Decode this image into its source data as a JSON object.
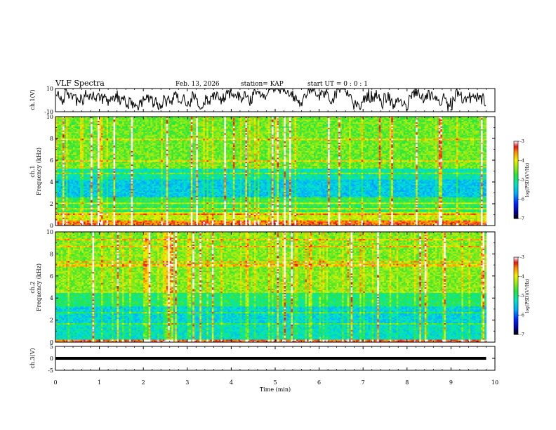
{
  "header": {
    "title": "VLF Spectra",
    "date": "Feb. 13, 2026",
    "station": "station= KAP",
    "start": "start  UT =   0 : 0  : 1"
  },
  "chart_data": {
    "type": "heatmap",
    "x_axis": {
      "label": "Time (min)",
      "range": [
        0,
        10
      ],
      "ticks": [
        0,
        1,
        2,
        3,
        4,
        5,
        6,
        7,
        8,
        9,
        10
      ],
      "tick_labels": [
        "0",
        "1",
        "2",
        "3",
        "4",
        "5",
        "6",
        "7",
        "8",
        "9",
        "10"
      ]
    },
    "panels": [
      {
        "id": "ch1_waveform",
        "kind": "line",
        "ylabel": "ch.1(V)",
        "ylim": [
          -10,
          10
        ],
        "y_ticks": [
          10,
          -10
        ],
        "y_tick_labels": [
          "10",
          "-10"
        ],
        "data_end_min": 9.8
      },
      {
        "id": "ch1_spectrogram",
        "kind": "heatmap",
        "ylabel_line1": "ch.1",
        "ylabel_line2": "Frequency (kHz)",
        "ylim": [
          0,
          10
        ],
        "y_ticks": [
          0,
          2,
          4,
          6,
          8,
          10
        ],
        "y_tick_labels": [
          "0",
          "2",
          "4",
          "6",
          "8",
          "10"
        ],
        "data_end_min": 9.8,
        "colorbar": {
          "label": "log(PSD)(V²/Hz)",
          "range": [
            -7,
            -3
          ],
          "ticks": [
            -3,
            -4,
            -5,
            -6,
            -7
          ],
          "tick_labels": [
            "-3",
            "-4",
            "-5",
            "-6",
            "-7"
          ]
        }
      },
      {
        "id": "ch2_spectrogram",
        "kind": "heatmap",
        "ylabel_line1": "ch.2",
        "ylabel_line2": "Frequency (kHz)",
        "ylim": [
          0,
          10
        ],
        "y_ticks": [
          0,
          2,
          4,
          6,
          8,
          10
        ],
        "y_tick_labels": [
          "0",
          "2",
          "4",
          "6",
          "8",
          "10"
        ],
        "data_end_min": 9.8,
        "colorbar": {
          "label": "log(PSD)(V²/Hz)",
          "range": [
            -7,
            -3
          ],
          "ticks": [
            -3,
            -4,
            -5,
            -6,
            -7
          ],
          "tick_labels": [
            "-3",
            "-4",
            "-5",
            "-6",
            "-7"
          ]
        }
      },
      {
        "id": "ch3_waveform",
        "kind": "band",
        "ylabel": "ch.3(V)",
        "ylim": [
          -5,
          5
        ],
        "y_ticks": [
          5,
          0,
          -5
        ],
        "y_tick_labels": [
          "5",
          "0",
          "-5"
        ],
        "band_range": [
          -0.6,
          0.6
        ],
        "data_end_min": 9.8
      }
    ]
  }
}
